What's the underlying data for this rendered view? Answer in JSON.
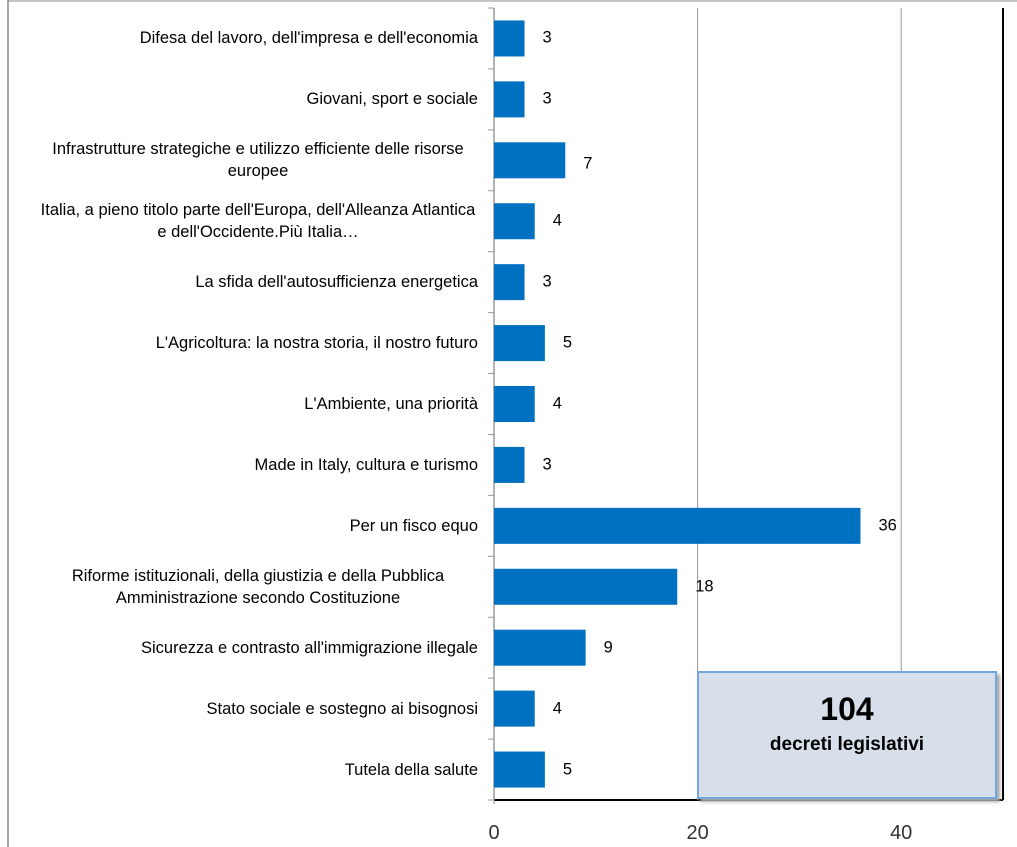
{
  "chart_data": {
    "type": "barh",
    "categories": [
      "Difesa del lavoro, dell'impresa e dell'economia",
      "Giovani, sport e sociale",
      "Infrastrutture strategiche e utilizzo efficiente delle risorse europee",
      "Italia, a pieno titolo parte dell'Europa, dell'Alleanza Atlantica e dell'Occidente.Più Italia…",
      "La sfida dell'autosufficienza energetica",
      "L'Agricoltura: la nostra storia, il nostro futuro",
      "L'Ambiente, una priorità",
      "Made in Italy, cultura e turismo",
      "Per un fisco equo",
      "Riforme istituzionali, della giustizia e della Pubblica Amministrazione secondo Costituzione",
      "Sicurezza e contrasto all'immigrazione illegale",
      "Stato sociale e sostegno ai bisognosi",
      "Tutela della salute"
    ],
    "values": [
      3,
      3,
      7,
      4,
      3,
      5,
      4,
      3,
      36,
      18,
      9,
      4,
      5
    ],
    "color": "#0070c0",
    "xlim": [
      0,
      50
    ],
    "xticks": [
      0,
      20,
      40
    ],
    "grid": true,
    "annotation": {
      "title": "104",
      "text": "decreti legislativi"
    }
  }
}
